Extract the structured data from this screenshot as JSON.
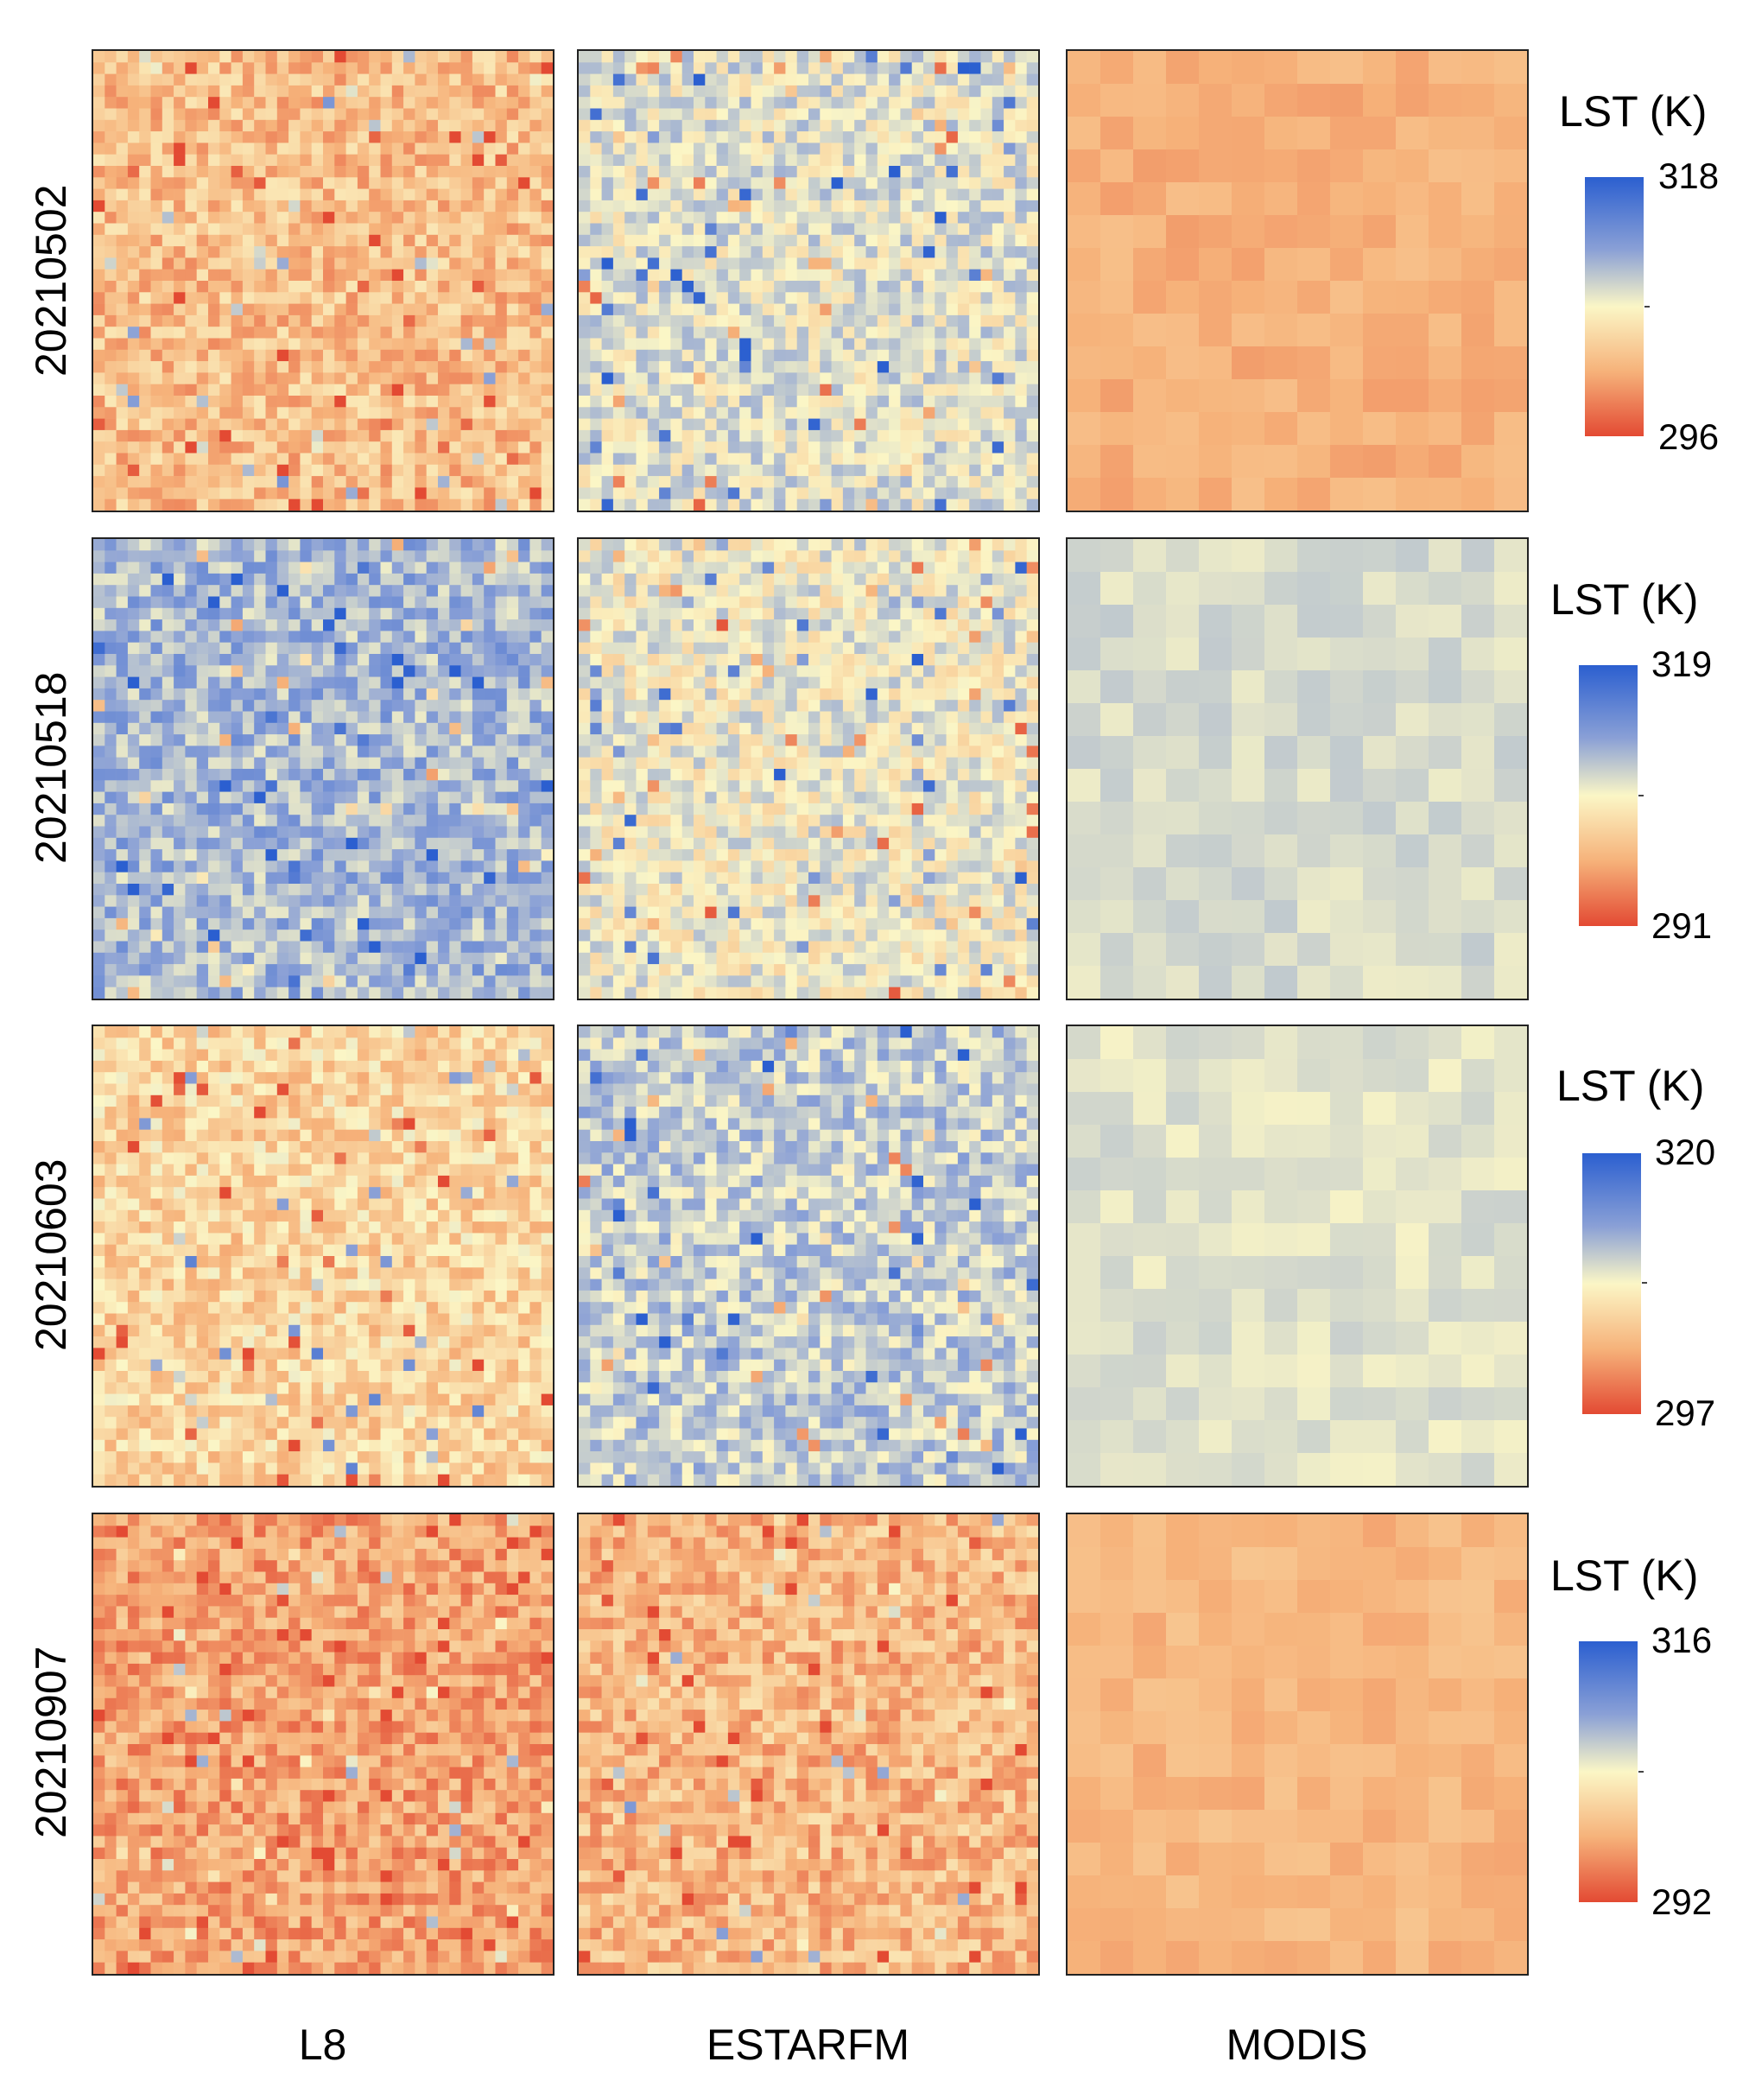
{
  "figure": {
    "columns": [
      "L8",
      "ESTARFM",
      "MODIS"
    ],
    "rows": [
      {
        "date": "20210502",
        "legend_title": "LST (K)",
        "max": "318",
        "min": "296"
      },
      {
        "date": "20210518",
        "legend_title": "LST (K)",
        "max": "319",
        "min": "291"
      },
      {
        "date": "20210603",
        "legend_title": "LST (K)",
        "max": "320",
        "min": "297"
      },
      {
        "date": "20210907",
        "legend_title": "LST (K)",
        "max": "316",
        "min": "292"
      }
    ]
  },
  "chart_data": {
    "type": "heatmap",
    "title": "",
    "variable": "LST (K)",
    "colormap": [
      "#2b5fd0",
      "#8aa0d6",
      "#fbf6c6",
      "#f6b27a",
      "#e34a33"
    ],
    "columns": [
      "L8",
      "ESTARFM",
      "MODIS"
    ],
    "dates": [
      "20210502",
      "20210518",
      "20210603",
      "20210907"
    ],
    "color_ranges": [
      [
        296,
        318
      ],
      [
        291,
        319
      ],
      [
        297,
        320
      ],
      [
        292,
        316
      ]
    ],
    "panel_tone": [
      [
        0.3,
        0.55,
        0.25
      ],
      [
        0.68,
        0.52,
        0.58
      ],
      [
        0.38,
        0.62,
        0.56
      ],
      [
        0.22,
        0.28,
        0.27
      ]
    ]
  }
}
